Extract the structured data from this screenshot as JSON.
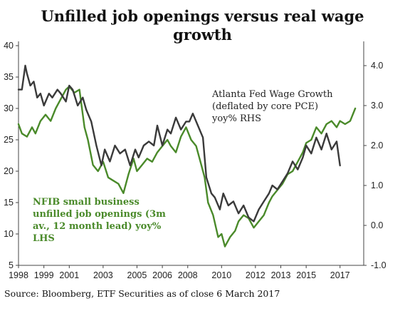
{
  "title_line1": "Unfilled job openings versus real wage",
  "title_line2": "growth",
  "source": "Source: Bloomberg, ETF Securities as of close 6 March 2017",
  "annotation_right": [
    "Atlanta Fed Wage Growth",
    "(deflated by core PCE)",
    "yoy% RHS"
  ],
  "annotation_left": [
    "NFIB small business",
    "unfilled job openings (3m",
    "av., 12 month lead) yoy%",
    "LHS"
  ],
  "chart_data": {
    "type": "line",
    "xlabels": [
      "1998",
      "1999",
      "2001",
      "2003",
      "2005",
      "2006",
      "2008",
      "2010",
      "2012",
      "2013",
      "2015",
      "2017"
    ],
    "xlabel_years": [
      1998,
      1999.5,
      2001,
      2003,
      2005,
      2006.5,
      2008,
      2010,
      2012,
      2013.5,
      2015,
      2017
    ],
    "xlim": [
      1998,
      2018.4
    ],
    "left_axis": {
      "ylim": [
        5,
        40
      ],
      "ticks": [
        5,
        10,
        15,
        20,
        25,
        30,
        35,
        40
      ],
      "label": ""
    },
    "right_axis": {
      "ylim": [
        -1.0,
        4.5
      ],
      "ticks": [
        "-1.0",
        "0.0",
        "1.0",
        "2.0",
        "3.0",
        "4.0"
      ],
      "label": ""
    },
    "colors": {
      "nfib": "#4a8a2a",
      "atlanta": "#3a3a3a",
      "annotation_green": "#4a8a2a",
      "annotation_dark": "#222222"
    },
    "series": [
      {
        "name": "NFIB small business unfilled job openings (3m av., 12 month lead) yoy% LHS",
        "axis": "left",
        "x": [
          1998.0,
          1998.2,
          1998.5,
          1998.8,
          1999.0,
          1999.3,
          1999.6,
          1999.9,
          2000.2,
          2000.5,
          2000.8,
          2001.0,
          2001.3,
          2001.6,
          2001.9,
          2002.1,
          2002.4,
          2002.7,
          2003.0,
          2003.3,
          2003.6,
          2003.9,
          2004.2,
          2004.5,
          2004.8,
          2005.0,
          2005.3,
          2005.6,
          2005.9,
          2006.2,
          2006.5,
          2006.8,
          2007.0,
          2007.3,
          2007.6,
          2007.9,
          2008.2,
          2008.5,
          2008.8,
          2009.0,
          2009.2,
          2009.5,
          2009.8,
          2010.0,
          2010.2,
          2010.5,
          2010.8,
          2011.0,
          2011.3,
          2011.6,
          2011.9,
          2012.2,
          2012.5,
          2012.8,
          2013.0,
          2013.3,
          2013.6,
          2013.9,
          2014.2,
          2014.5,
          2014.8,
          2015.0,
          2015.3,
          2015.6,
          2015.9,
          2016.2,
          2016.5,
          2016.8,
          2017.0,
          2017.3,
          2017.6,
          2017.9
        ],
        "values": [
          27.5,
          26.0,
          25.5,
          27.0,
          26.0,
          28.0,
          29.0,
          28.0,
          30.0,
          31.5,
          33.0,
          33.5,
          32.5,
          33.0,
          27.0,
          25.0,
          21.0,
          20.0,
          21.5,
          19.0,
          18.5,
          18.0,
          16.5,
          19.5,
          22.0,
          20.0,
          21.0,
          22.0,
          21.5,
          23.0,
          24.0,
          25.0,
          24.0,
          23.0,
          25.5,
          27.0,
          25.0,
          24.0,
          21.0,
          19.0,
          15.0,
          13.0,
          9.5,
          10.0,
          8.0,
          9.5,
          10.5,
          12.0,
          13.0,
          12.5,
          11.0,
          12.0,
          13.0,
          15.0,
          16.0,
          17.0,
          18.0,
          19.5,
          20.0,
          21.5,
          23.0,
          24.5,
          25.0,
          27.0,
          26.0,
          27.5,
          28.0,
          27.0,
          28.0,
          27.5,
          28.0,
          30.0
        ]
      },
      {
        "name": "Atlanta Fed Wage Growth (deflated by core PCE) yoy% RHS",
        "axis": "right",
        "x": [
          1998.0,
          1998.2,
          1998.4,
          1998.5,
          1998.7,
          1998.9,
          1999.1,
          1999.3,
          1999.5,
          1999.8,
          2000.0,
          2000.3,
          2000.5,
          2000.8,
          2001.0,
          2001.2,
          2001.5,
          2001.8,
          2002.0,
          2002.3,
          2002.6,
          2002.9,
          2003.1,
          2003.4,
          2003.7,
          2004.0,
          2004.3,
          2004.6,
          2004.9,
          2005.1,
          2005.4,
          2005.7,
          2006.0,
          2006.2,
          2006.5,
          2006.8,
          2007.0,
          2007.3,
          2007.6,
          2007.9,
          2008.1,
          2008.3,
          2008.6,
          2008.9,
          2009.1,
          2009.4,
          2009.6,
          2009.9,
          2010.1,
          2010.4,
          2010.7,
          2011.0,
          2011.3,
          2011.6,
          2011.9,
          2012.2,
          2012.5,
          2012.8,
          2013.0,
          2013.3,
          2013.6,
          2013.9,
          2014.2,
          2014.5,
          2014.8,
          2015.0,
          2015.3,
          2015.6,
          2015.9,
          2016.2,
          2016.5,
          2016.8,
          2017.0
        ],
        "values": [
          3.4,
          3.4,
          4.0,
          3.8,
          3.5,
          3.6,
          3.2,
          3.3,
          3.0,
          3.3,
          3.2,
          3.4,
          3.3,
          3.1,
          3.5,
          3.4,
          3.0,
          3.2,
          2.9,
          2.6,
          2.0,
          1.5,
          1.9,
          1.6,
          2.0,
          1.8,
          1.9,
          1.5,
          1.9,
          1.7,
          2.0,
          2.1,
          2.0,
          2.5,
          2.0,
          2.4,
          2.3,
          2.7,
          2.4,
          2.6,
          2.6,
          2.8,
          2.5,
          2.2,
          1.2,
          0.8,
          0.7,
          0.4,
          0.8,
          0.5,
          0.6,
          0.3,
          0.5,
          0.2,
          0.1,
          0.4,
          0.6,
          0.8,
          1.0,
          0.9,
          1.1,
          1.3,
          1.6,
          1.4,
          1.7,
          2.0,
          1.8,
          2.2,
          1.9,
          2.3,
          1.9,
          2.1,
          1.5
        ]
      }
    ]
  }
}
